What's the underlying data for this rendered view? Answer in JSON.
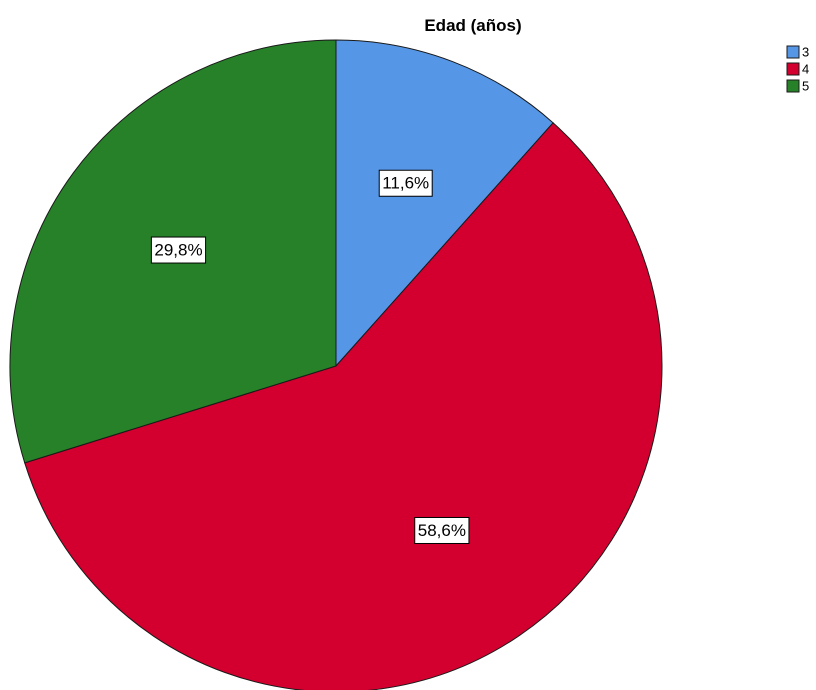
{
  "chart_data": {
    "type": "pie",
    "title": "Edad (años)",
    "categories": [
      "3",
      "4",
      "5"
    ],
    "values": [
      11.6,
      58.6,
      29.8
    ],
    "labels": [
      "11,6%",
      "58,6%",
      "29,8%"
    ],
    "colors": [
      "#5596e6",
      "#d3002f",
      "#268128"
    ],
    "start_angle": "12 o'clock",
    "direction": "clockwise",
    "legend": {
      "position": "top-right",
      "entries": [
        "3",
        "4",
        "5"
      ]
    }
  }
}
